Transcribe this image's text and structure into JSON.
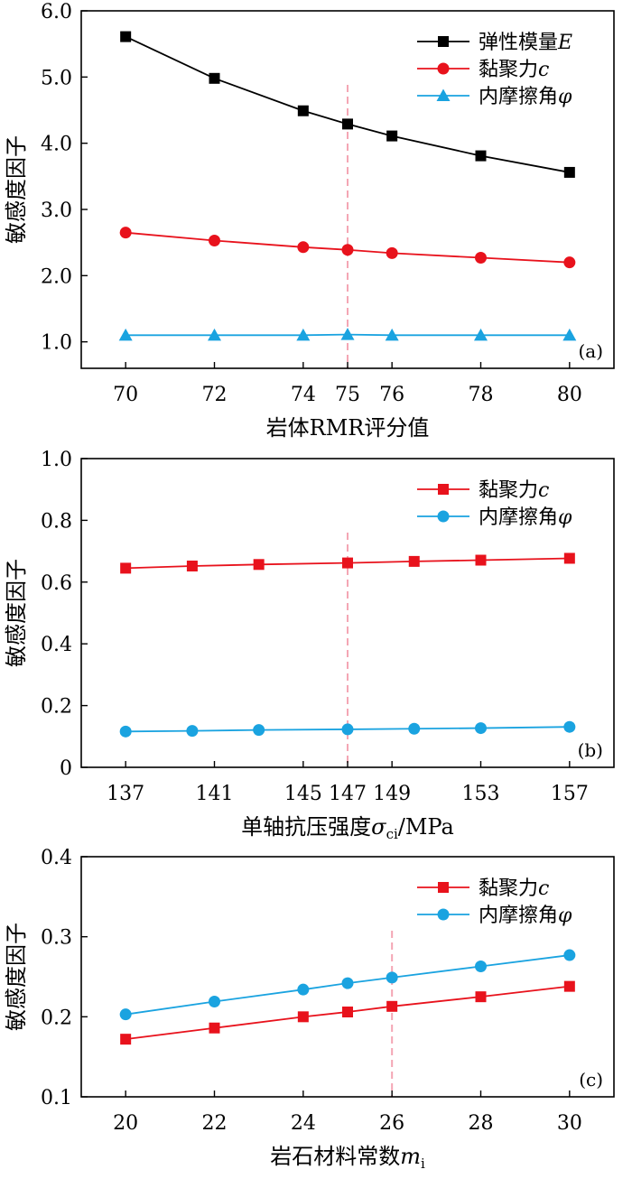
{
  "chart_data": [
    {
      "type": "line",
      "panel_label": "(a)",
      "xlabel": "岩体RMR评分值",
      "ylabel": "敏感度因子",
      "xlim": [
        69,
        81
      ],
      "ylim": [
        0.6,
        6.0
      ],
      "x_ticks": [
        70,
        72,
        74,
        75,
        76,
        78,
        80
      ],
      "y_ticks": [
        "1.0",
        "2.0",
        "3.0",
        "4.0",
        "5.0",
        "6.0"
      ],
      "reference_x": 75,
      "legend_position": "top-right",
      "x": [
        70,
        72,
        74,
        75,
        76,
        78,
        80
      ],
      "series": [
        {
          "name": "弹性模量",
          "name_italic": "E",
          "color": "#000000",
          "marker": "square",
          "values": [
            5.61,
            4.98,
            4.49,
            4.29,
            4.11,
            3.81,
            3.56
          ]
        },
        {
          "name": "黏聚力",
          "name_italic": "c",
          "color": "#e8121c",
          "marker": "circle",
          "values": [
            2.65,
            2.53,
            2.43,
            2.39,
            2.34,
            2.27,
            2.2
          ]
        },
        {
          "name": "内摩擦角",
          "name_italic": "φ",
          "color": "#1aa3e0",
          "marker": "triangle",
          "values": [
            1.1,
            1.1,
            1.1,
            1.11,
            1.1,
            1.1,
            1.1
          ]
        }
      ]
    },
    {
      "type": "line",
      "panel_label": "(b)",
      "xlabel": "单轴抗压强度",
      "xlabel_italic": "σ",
      "xlabel_sub": "ci",
      "xlabel_suffix": "/MPa",
      "ylabel": "敏感度因子",
      "xlim": [
        135,
        159
      ],
      "ylim": [
        0,
        1.0
      ],
      "x_ticks": [
        137,
        141,
        145,
        147,
        149,
        153,
        157
      ],
      "y_ticks": [
        "0",
        "0.2",
        "0.4",
        "0.6",
        "0.8",
        "1.0"
      ],
      "reference_x": 147,
      "legend_position": "top-right",
      "x": [
        137,
        140,
        143,
        147,
        150,
        153,
        157
      ],
      "series": [
        {
          "name": "黏聚力",
          "name_italic": "c",
          "color": "#e8121c",
          "marker": "square",
          "values": [
            0.645,
            0.652,
            0.657,
            0.662,
            0.667,
            0.671,
            0.677
          ]
        },
        {
          "name": "内摩擦角",
          "name_italic": "φ",
          "color": "#1aa3e0",
          "marker": "circle",
          "values": [
            0.116,
            0.118,
            0.121,
            0.123,
            0.125,
            0.127,
            0.131
          ]
        }
      ]
    },
    {
      "type": "line",
      "panel_label": "(c)",
      "xlabel": "岩石材料常数",
      "xlabel_italic": "m",
      "xlabel_sub": "i",
      "xlabel_suffix": "",
      "ylabel": "敏感度因子",
      "xlim": [
        19,
        31
      ],
      "ylim": [
        0.1,
        0.4
      ],
      "x_ticks": [
        20,
        22,
        24,
        26,
        28,
        30
      ],
      "y_ticks": [
        "0.1",
        "0.2",
        "0.3",
        "0.4"
      ],
      "reference_x": 26,
      "legend_position": "top-right",
      "x": [
        20,
        22,
        24,
        25,
        26,
        28,
        30
      ],
      "series": [
        {
          "name": "黏聚力",
          "name_italic": "c",
          "color": "#e8121c",
          "marker": "square",
          "values": [
            0.172,
            0.186,
            0.2,
            0.206,
            0.213,
            0.225,
            0.238
          ]
        },
        {
          "name": "内摩擦角",
          "name_italic": "φ",
          "color": "#1aa3e0",
          "marker": "circle",
          "values": [
            0.203,
            0.219,
            0.234,
            0.242,
            0.249,
            0.263,
            0.277
          ]
        }
      ]
    }
  ]
}
